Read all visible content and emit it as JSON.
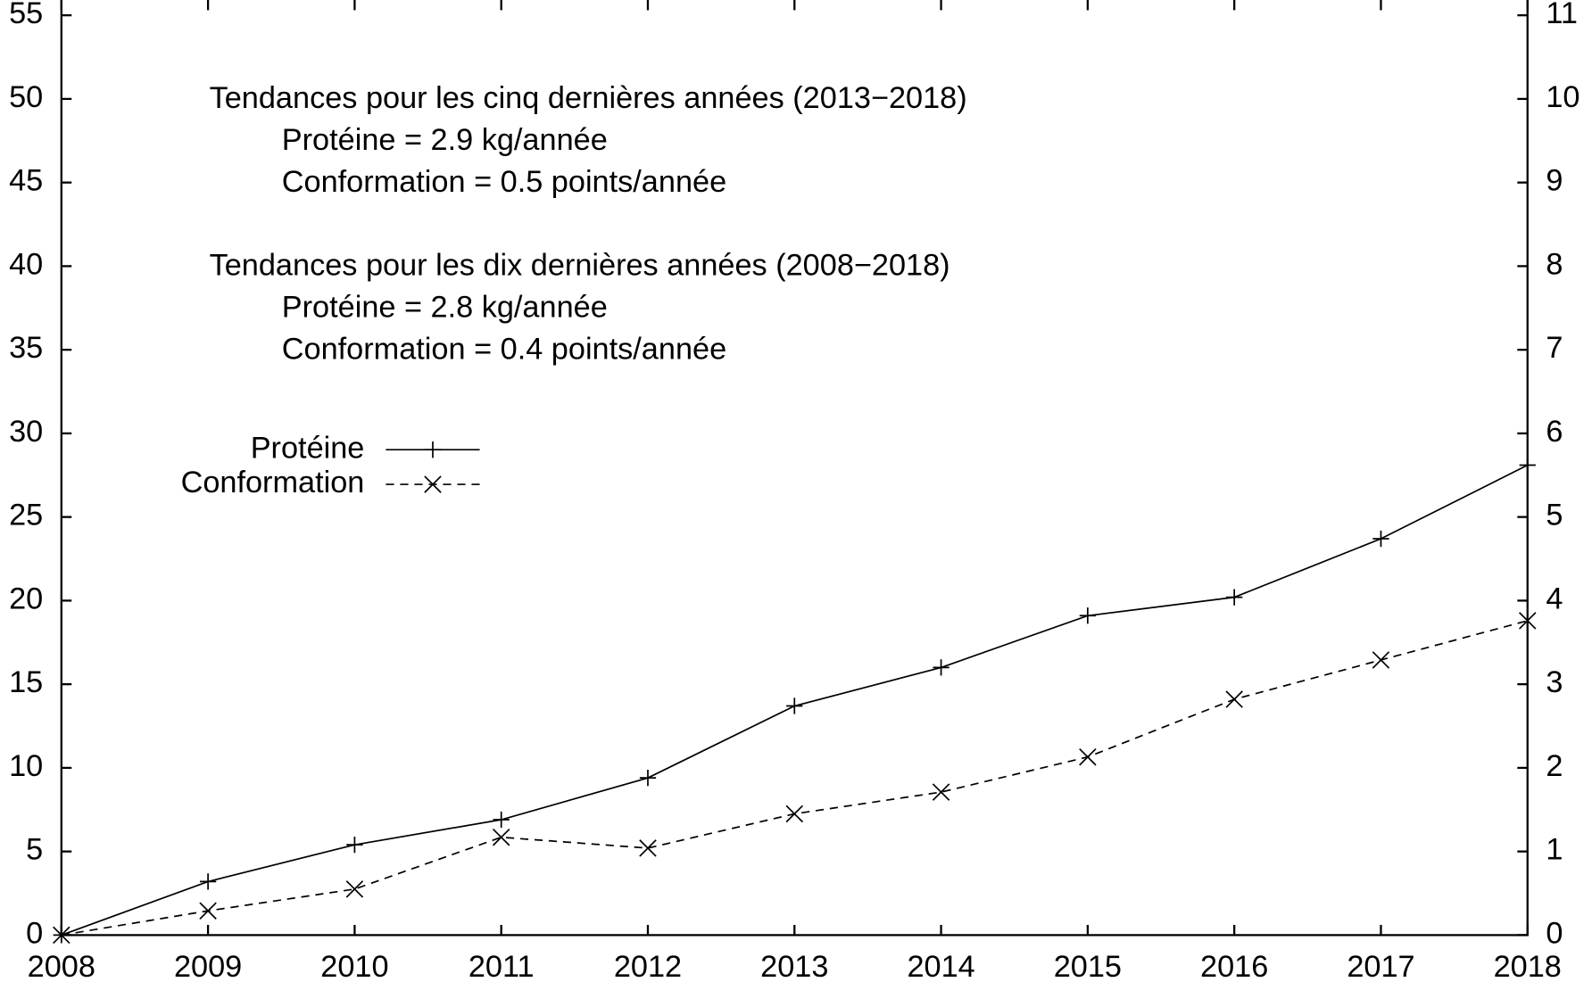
{
  "chart_data": {
    "type": "line",
    "annotations": [
      "Tendances pour les cinq dernières années (2013−2018)",
      "Protéine = 2.9 kg/année",
      "Conformation = 0.5 points/année",
      "Tendances pour les dix dernières années (2008−2018)",
      "Protéine = 2.8 kg/année",
      "Conformation = 0.4 points/année"
    ],
    "x": [
      2008,
      2009,
      2010,
      2011,
      2012,
      2013,
      2014,
      2015,
      2016,
      2017,
      2018
    ],
    "series": [
      {
        "name": "Protéine",
        "color": "#000000",
        "values": [
          0,
          3.2,
          5.4,
          6.9,
          9.4,
          13.7,
          16.0,
          19.1,
          20.2,
          23.7,
          28.1
        ]
      },
      {
        "name": "Conformation",
        "color": "#000000",
        "axis": "y2",
        "values": [
          0,
          0.29,
          0.55,
          1.17,
          1.04,
          1.45,
          1.71,
          2.13,
          2.82,
          3.29,
          3.76
        ]
      }
    ],
    "xlim": [
      2008,
      2018
    ],
    "xticks": [
      2008,
      2009,
      2010,
      2011,
      2012,
      2013,
      2014,
      2015,
      2016,
      2017,
      2018
    ],
    "ylim": [
      0,
      55
    ],
    "yticks": [
      0,
      5,
      10,
      15,
      20,
      25,
      30,
      35,
      40,
      45,
      50,
      55
    ],
    "y2lim": [
      0,
      11
    ],
    "y2ticks": [
      0,
      1,
      2,
      3,
      4,
      5,
      6,
      7,
      8,
      9,
      10,
      11
    ],
    "legend": "upper left"
  }
}
